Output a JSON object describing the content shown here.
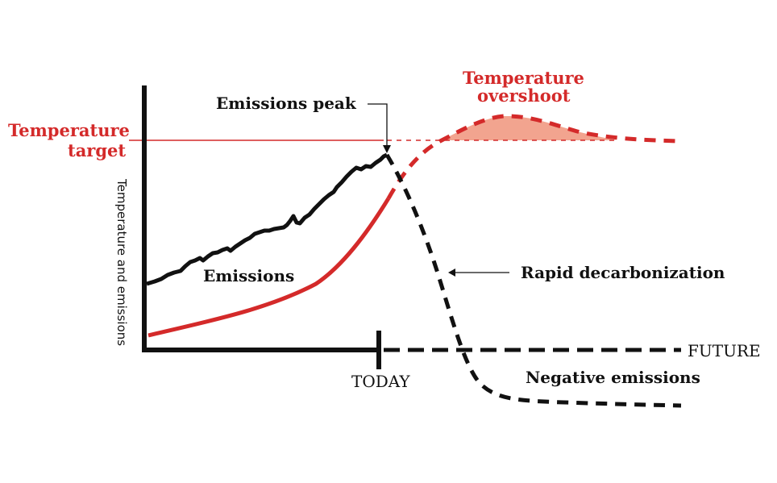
{
  "labels": {
    "temperature_target_line1": "Temperature",
    "temperature_target_line2": "target",
    "temperature_overshoot_line1": "Temperature",
    "temperature_overshoot_line2": "overshoot",
    "emissions_peak": "Emissions peak",
    "emissions": "Emissions",
    "rapid_decarbonization": "Rapid decarbonization",
    "negative_emissions": "Negative emissions",
    "today": "TODAY",
    "future": "FUTURE",
    "y_axis": "Temperature and emissions"
  },
  "colors": {
    "temperature": "#d42a2a",
    "overshoot_fill": "#f2a48f",
    "emissions": "#111111"
  },
  "icons": {
    "peak_pointer": "arrow-down-icon",
    "decarbonization_pointer": "arrow-left-icon"
  }
}
